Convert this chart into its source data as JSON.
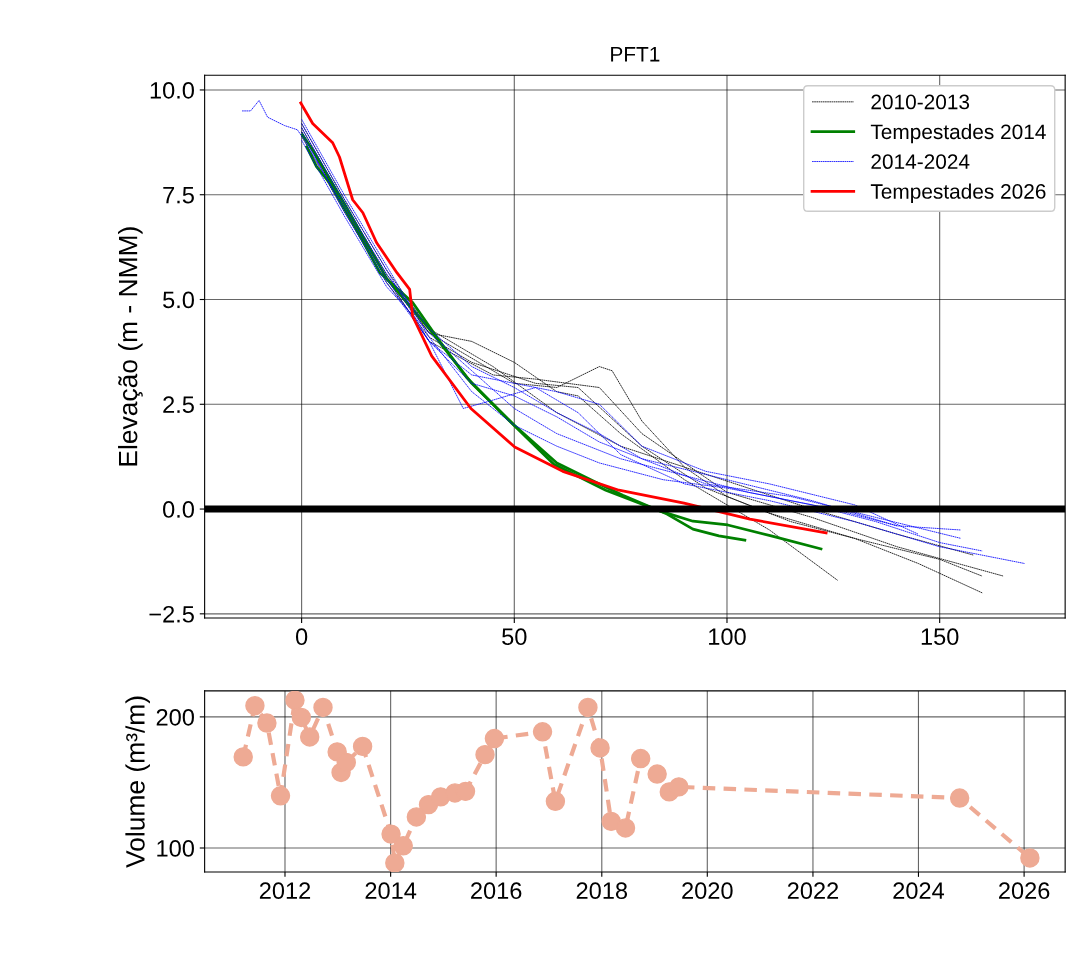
{
  "chart_data": [
    {
      "type": "line",
      "title": "PFT1",
      "ylabel": "Elevação (m - NMM)",
      "xlim": [
        -22.8,
        179.5
      ],
      "ylim": [
        -2.6,
        10.35
      ],
      "xticks": [
        0,
        50,
        100,
        150
      ],
      "yticks": [
        {
          "value": -2.5,
          "label": "−2.5"
        },
        {
          "value": 0,
          "label": "0.0"
        },
        {
          "value": 2.5,
          "label": "2.5"
        },
        {
          "value": 5,
          "label": "5.0"
        },
        {
          "value": 7.5,
          "label": "7.5"
        },
        {
          "value": 10,
          "label": "10.0"
        }
      ],
      "grid": true,
      "legend": "top right",
      "ref_lines": [
        {
          "axis": "y",
          "value": 0,
          "color": "#000000"
        }
      ],
      "series": [
        {
          "name": "2010-2013",
          "color": "#000000",
          "line_style": "dotted",
          "x": [
            0,
            10,
            20,
            30,
            40,
            50,
            60,
            70,
            73,
            80,
            90,
            100,
            115,
            130,
            150,
            160
          ],
          "values": [
            9.0,
            7.2,
            5.5,
            4.2,
            3.6,
            3.0,
            2.9,
            3.4,
            3.3,
            2.1,
            1.0,
            0.3,
            -0.3,
            -0.7,
            -1.2,
            -1.6
          ]
        },
        {
          "color": "#000000",
          "line_style": "dotted",
          "x": [
            0,
            10,
            20,
            30,
            40,
            50,
            60,
            65,
            75,
            90,
            100,
            110,
            126
          ],
          "values": [
            9.1,
            7.3,
            5.6,
            4.2,
            4.0,
            3.5,
            2.8,
            2.7,
            1.8,
            0.7,
            0.1,
            -0.5,
            -1.7
          ]
        },
        {
          "color": "#000000",
          "line_style": "dotted",
          "x": [
            0,
            10,
            20,
            30,
            40,
            55,
            65,
            80,
            95,
            110,
            130,
            145,
            160
          ],
          "values": [
            8.9,
            7.1,
            5.4,
            4.1,
            3.5,
            3.0,
            2.9,
            1.5,
            0.5,
            -0.1,
            -0.7,
            -1.3,
            -2.0
          ]
        },
        {
          "color": "#000000",
          "line_style": "dotted",
          "x": [
            0,
            10,
            20,
            30,
            45,
            60,
            75,
            90,
            105,
            120,
            140,
            158
          ],
          "values": [
            9.2,
            7.4,
            5.7,
            4.3,
            3.4,
            2.3,
            1.5,
            1.0,
            0.5,
            0.0,
            -0.6,
            -1.1
          ]
        },
        {
          "color": "#000000",
          "line_style": "dotted",
          "x": [
            0,
            10,
            20,
            30,
            45,
            55,
            70,
            80,
            100,
            120,
            140,
            165
          ],
          "values": [
            9.0,
            7.2,
            5.5,
            4.0,
            3.2,
            3.1,
            2.9,
            1.8,
            0.4,
            -0.2,
            -0.9,
            -1.6
          ]
        },
        {
          "name": "Tempestades 2014",
          "color": "#008000",
          "line_style": "solid",
          "x": [
            1.2,
            3.5,
            6.6,
            12.9,
            18.4,
            26.1,
            32.7,
            38.8,
            48.9,
            59.3,
            71.5,
            83.8,
            92,
            100.2,
            110.4,
            122.1
          ],
          "values": [
            8.64,
            8.17,
            7.78,
            6.67,
            5.64,
            4.93,
            3.97,
            3.14,
            2.1,
            1.07,
            0.45,
            -0.03,
            -0.29,
            -0.38,
            -0.64,
            -0.95
          ]
        },
        {
          "color": "#008000",
          "line_style": "solid",
          "x": [
            0.2,
            3,
            10,
            20,
            30,
            40,
            50,
            60,
            70,
            75.5,
            85.9,
            92,
            98.1,
            104.2
          ],
          "values": [
            8.93,
            8.5,
            7.3,
            5.5,
            4.3,
            3.0,
            2.0,
            1.1,
            0.6,
            0.33,
            -0.12,
            -0.48,
            -0.64,
            -0.74
          ]
        },
        {
          "name": "2014-2024",
          "color": "#0000ff",
          "line_style": "dotted",
          "x": [
            -14,
            -12,
            -10,
            -8,
            -4,
            -1,
            0,
            10,
            20,
            30,
            40,
            50,
            60,
            70,
            80,
            100,
            120,
            140,
            155
          ],
          "values": [
            9.5,
            9.5,
            9.75,
            9.35,
            9.15,
            9.05,
            8.9,
            7.2,
            5.5,
            4.0,
            3.0,
            2.7,
            2.2,
            1.6,
            1.2,
            0.7,
            0.2,
            -0.4,
            -0.5
          ]
        },
        {
          "color": "#0000ff",
          "line_style": "dotted",
          "x": [
            0,
            10,
            20,
            30,
            35,
            38,
            45,
            55,
            65,
            75,
            90,
            110,
            130,
            150,
            170
          ],
          "values": [
            9.2,
            7.4,
            5.7,
            4.0,
            3.0,
            2.4,
            2.6,
            2.9,
            2.3,
            1.3,
            0.6,
            0.2,
            -0.3,
            -0.9,
            -1.3
          ]
        },
        {
          "color": "#0000ff",
          "line_style": "dotted",
          "x": [
            0,
            10,
            20,
            30,
            40,
            50,
            60,
            70,
            80,
            95,
            110,
            130,
            145
          ],
          "values": [
            9.0,
            7.1,
            5.4,
            4.0,
            3.2,
            3.0,
            2.8,
            2.5,
            1.5,
            0.9,
            0.6,
            0.1,
            -0.6
          ]
        },
        {
          "color": "#0000ff",
          "line_style": "dotted",
          "x": [
            0,
            10,
            20,
            30,
            40,
            50,
            60,
            70,
            85,
            100,
            120,
            135,
            150,
            160
          ],
          "values": [
            9.3,
            7.5,
            5.8,
            4.1,
            2.8,
            2.0,
            1.5,
            1.1,
            0.7,
            0.5,
            0.1,
            -0.3,
            -0.8,
            -1.0
          ]
        },
        {
          "color": "#0000ff",
          "line_style": "dotted",
          "x": [
            0,
            10,
            20,
            30,
            40,
            50,
            60,
            70,
            80,
            95,
            115,
            135,
            155
          ],
          "values": [
            9.1,
            7.3,
            5.6,
            4.3,
            3.4,
            2.9,
            2.3,
            1.8,
            1.2,
            0.6,
            0.3,
            -0.2,
            -0.7
          ]
        },
        {
          "color": "#0000ff",
          "line_style": "dotted",
          "x": [
            0,
            10,
            20,
            30,
            40,
            50,
            60,
            75,
            90,
            105,
            125,
            140
          ],
          "values": [
            8.8,
            7.0,
            5.3,
            4.2,
            3.3,
            2.4,
            1.8,
            1.2,
            0.8,
            0.4,
            0.0,
            -0.4
          ]
        },
        {
          "name": "Tempestades 2026",
          "color": "#ff0000",
          "line_style": "solid",
          "x": [
            -0.2,
            2.6,
            7.3,
            8.9,
            12,
            14.4,
            17.6,
            22.4,
            25.4,
            26.1,
            30.6,
            39.8,
            50.1,
            61.4,
            74.6,
            89.9,
            105.4,
            123.3
          ],
          "values": [
            9.69,
            9.2,
            8.74,
            8.4,
            7.38,
            7.07,
            6.36,
            5.64,
            5.24,
            4.6,
            3.65,
            2.4,
            1.48,
            0.9,
            0.45,
            0.14,
            -0.24,
            -0.57
          ]
        }
      ]
    },
    {
      "type": "line",
      "ylabel": "Volume (m³/m)",
      "xlim": [
        "2010-06-24",
        "2026-10-12"
      ],
      "ylim": [
        81.7,
        219.8
      ],
      "xticks": [
        "2012",
        "2014",
        "2016",
        "2018",
        "2020",
        "2022",
        "2024",
        "2026"
      ],
      "yticks": [
        100,
        200
      ],
      "grid": true,
      "marker": "circle",
      "line_style": "dashed",
      "color": "#eeaa94",
      "x": [
        "2011-03-18",
        "2011-06-07",
        "2011-08-29",
        "2011-12-01",
        "2012-03-10",
        "2012-04-23",
        "2012-06-20",
        "2012-09-20",
        "2012-12-27",
        "2013-01-23",
        "2013-02-28",
        "2013-06-21",
        "2014-01-04",
        "2014-01-30",
        "2014-03-29",
        "2014-06-28",
        "2014-09-20",
        "2014-12-13",
        "2015-03-22",
        "2015-06-03",
        "2015-10-16",
        "2015-12-20",
        "2016-11-17",
        "2017-02-14",
        "2017-09-27",
        "2017-12-20",
        "2018-03-07",
        "2018-06-14",
        "2018-09-27",
        "2019-01-19",
        "2019-04-13",
        "2019-06-18",
        "2024-10-12",
        "2026-02-10"
      ],
      "values": [
        169.5,
        208.5,
        195.3,
        139.8,
        212.7,
        199.6,
        184.7,
        207.2,
        173.3,
        157.6,
        165.3,
        177.5,
        110.6,
        88.6,
        101.7,
        123.7,
        133.1,
        139.0,
        142.0,
        143.2,
        171.2,
        183.5,
        188.6,
        135.6,
        207.2,
        176.3,
        120.3,
        115.3,
        168.2,
        156.4,
        142.8,
        146.6,
        138.1,
        92.4
      ]
    }
  ]
}
